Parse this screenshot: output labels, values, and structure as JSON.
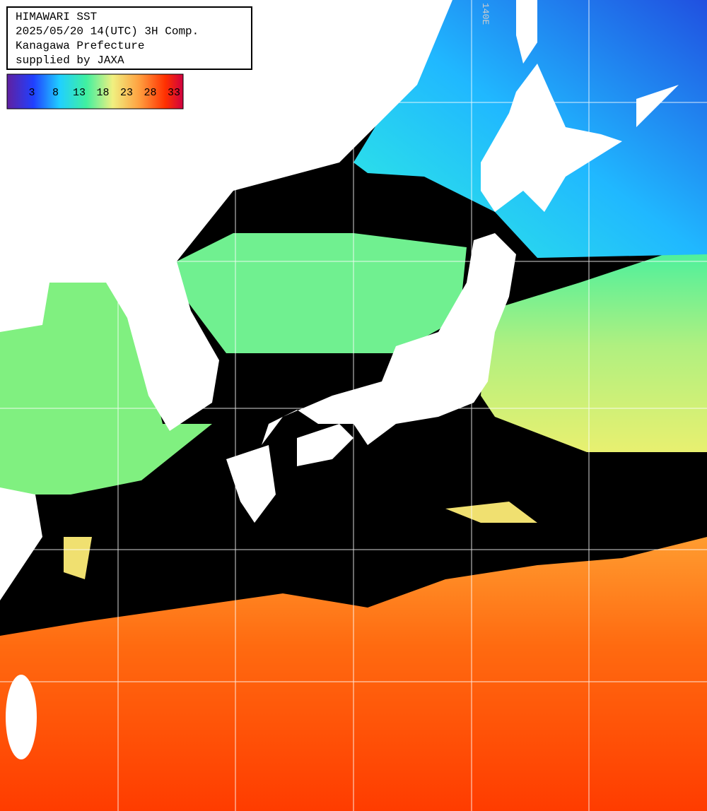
{
  "header": {
    "lines": [
      "HIMAWARI SST",
      "2025/05/20 14(UTC) 3H Comp.",
      "Kanagawa Prefecture",
      "supplied by JAXA"
    ]
  },
  "colorbar": {
    "ticks": [
      3,
      8,
      13,
      18,
      23,
      28,
      33
    ]
  },
  "grid_labels": [
    "140E"
  ]
}
